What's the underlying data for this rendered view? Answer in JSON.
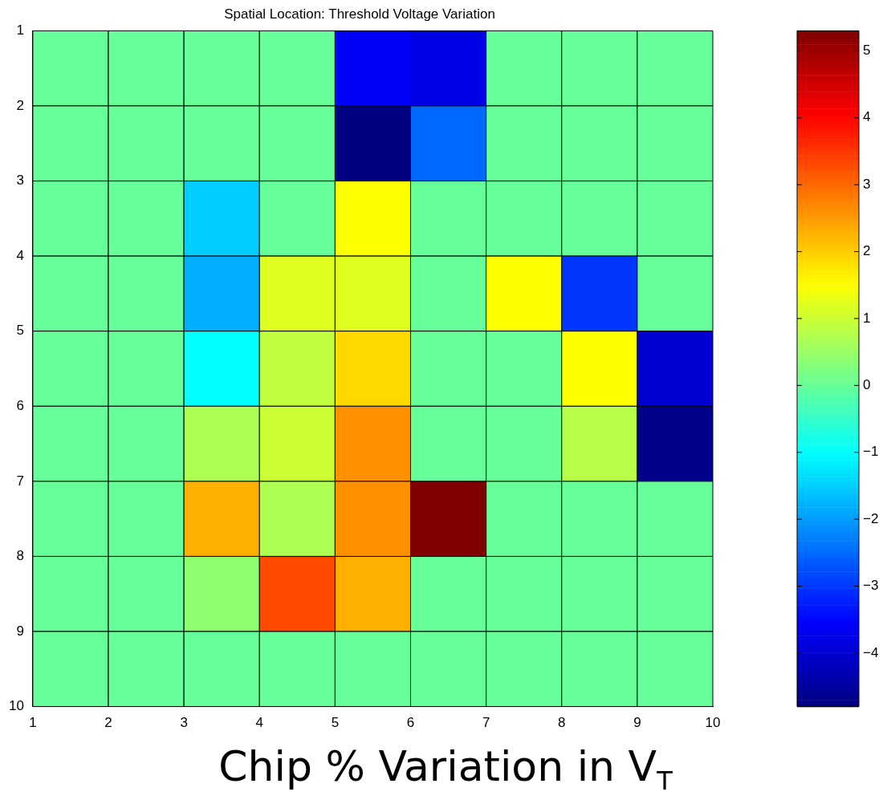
{
  "chart_data": {
    "type": "heatmap",
    "title": "Spatial Location: Threshold Voltage Variation",
    "xlim": [
      1,
      10
    ],
    "xticks": [
      1,
      2,
      3,
      4,
      5,
      6,
      7,
      8,
      9,
      10
    ],
    "ylim": [
      10,
      1
    ],
    "yticks": [
      1,
      2,
      3,
      4,
      5,
      6,
      7,
      8,
      9,
      10
    ],
    "cells": [
      [
        0,
        0,
        0,
        0,
        -3.6,
        -3.8,
        0,
        0,
        0
      ],
      [
        0,
        0,
        0,
        0,
        -4.8,
        -2.5,
        0,
        0,
        0
      ],
      [
        0,
        0,
        -1.5,
        0,
        1.5,
        0,
        0,
        0,
        0
      ],
      [
        0,
        0,
        -1.8,
        1.2,
        1.2,
        0,
        1.5,
        -3.0,
        0
      ],
      [
        0,
        0,
        -1.0,
        0.9,
        1.9,
        0,
        0,
        1.5,
        -4.0
      ],
      [
        0,
        0,
        0.7,
        1.0,
        2.6,
        0,
        0,
        0.8,
        -4.7
      ],
      [
        0,
        0,
        2.3,
        0.7,
        2.6,
        5.3,
        0,
        0,
        0
      ],
      [
        0,
        0,
        0.4,
        3.3,
        2.3,
        0,
        0,
        0,
        0
      ],
      [
        0,
        0,
        0,
        0,
        0,
        0,
        0,
        0,
        0
      ]
    ],
    "clim": [
      -4.8,
      5.3
    ],
    "cticks": [
      -4,
      -3,
      -2,
      -1,
      0,
      1,
      2,
      3,
      4,
      5
    ],
    "annotations": [
      "Chip % Variation in V$_{T}$"
    ]
  }
}
